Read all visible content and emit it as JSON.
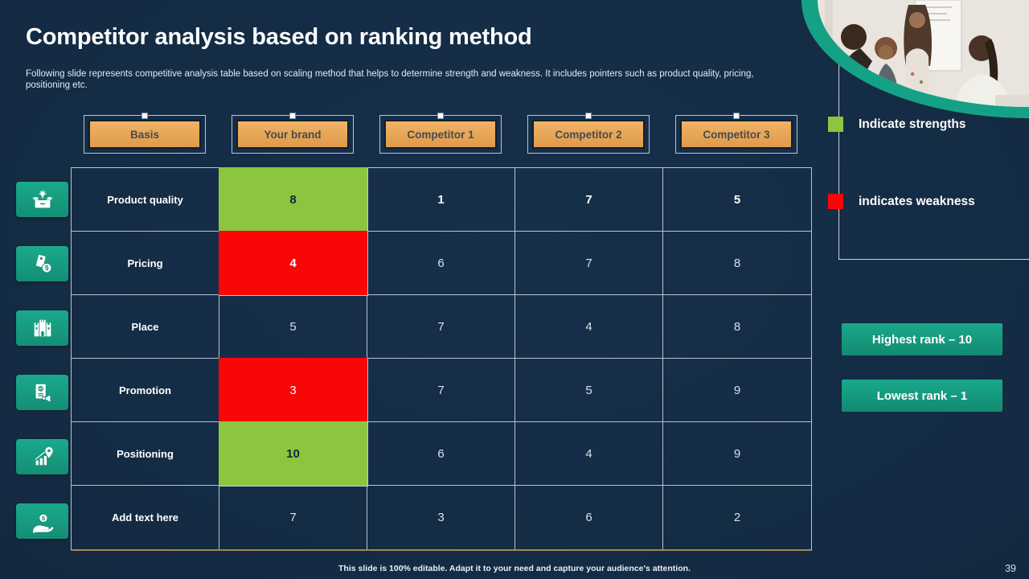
{
  "slide": {
    "title": "Competitor analysis based on ranking method",
    "subtitle": "Following slide represents competitive analysis table based on scaling method that helps to determine strength and weakness. It includes pointers such as product quality, pricing, positioning etc.",
    "footer": "This slide is 100% editable.  Adapt it to your need and capture your audience's attention.",
    "page_number": "39"
  },
  "table": {
    "columns": [
      "Basis",
      "Your brand",
      "Competitor 1",
      "Competitor 2",
      "Competitor 3"
    ],
    "rows": [
      {
        "label": "Product quality",
        "icon": "product-quality-icon",
        "values": [
          "8",
          "1",
          "7",
          "5"
        ],
        "highlight": [
          "green",
          null,
          null,
          null
        ],
        "bold": [
          true,
          true,
          true,
          true
        ]
      },
      {
        "label": "Pricing",
        "icon": "pricing-icon",
        "values": [
          "4",
          "6",
          "7",
          "8"
        ],
        "highlight": [
          "red",
          null,
          null,
          null
        ],
        "bold": [
          true,
          false,
          false,
          false
        ]
      },
      {
        "label": "Place",
        "icon": "place-icon",
        "values": [
          "5",
          "7",
          "4",
          "8"
        ],
        "highlight": [
          null,
          null,
          null,
          null
        ],
        "bold": [
          false,
          false,
          false,
          false
        ]
      },
      {
        "label": "Promotion",
        "icon": "promotion-icon",
        "values": [
          "3",
          "7",
          "5",
          "9"
        ],
        "highlight": [
          "red",
          null,
          null,
          null
        ],
        "bold": [
          false,
          false,
          false,
          false
        ]
      },
      {
        "label": "Positioning",
        "icon": "positioning-icon",
        "values": [
          "10",
          "6",
          "4",
          "9"
        ],
        "highlight": [
          "green",
          null,
          null,
          null
        ],
        "bold": [
          true,
          false,
          false,
          false
        ]
      },
      {
        "label": "Add text here",
        "icon": "hand-money-icon",
        "values": [
          "7",
          "3",
          "6",
          "2"
        ],
        "highlight": [
          null,
          null,
          null,
          null
        ],
        "bold": [
          false,
          false,
          false,
          false
        ]
      }
    ]
  },
  "legend": {
    "strength_label": "Indicate strengths",
    "weakness_label": "indicates weakness",
    "strength_color": "#8CC63F",
    "weakness_color": "#F70707"
  },
  "rank_buttons": {
    "highest": "Highest rank – 10",
    "lowest": "Lowest rank – 1"
  },
  "colors": {
    "background": "#132A42",
    "teal": "#18A185",
    "header_orange": "#E8A557",
    "strength_green": "#8CC63F",
    "weakness_red": "#F90606",
    "table_border": "#CBD5DF",
    "table_bottom_border": "#A5854F"
  }
}
